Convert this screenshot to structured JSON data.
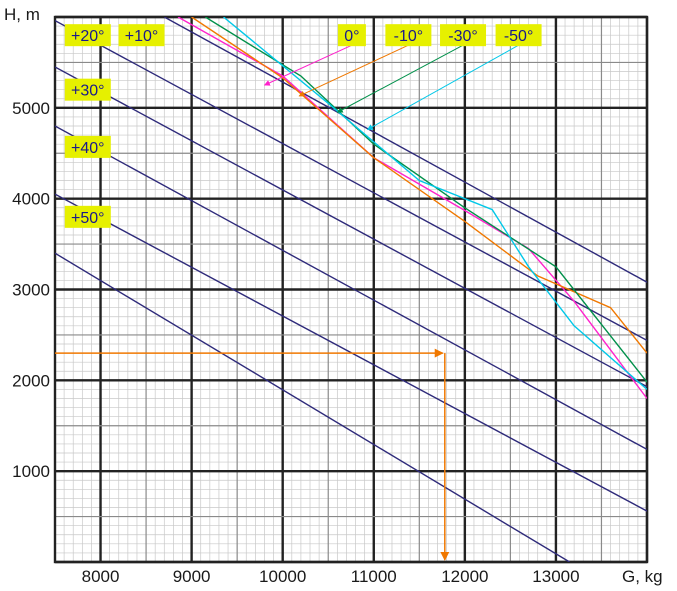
{
  "chart_data": {
    "type": "line",
    "xlabel": "G, kg",
    "ylabel": "H, m",
    "xlim": [
      7500,
      14000
    ],
    "ylim": [
      0,
      6000
    ],
    "x_ticks": [
      8000,
      9000,
      10000,
      11000,
      12000,
      13000
    ],
    "x_tick_labels": [
      "8000",
      "9000",
      "10000",
      "11000",
      "12000",
      "13000"
    ],
    "y_ticks": [
      1000,
      2000,
      3000,
      4000,
      5000
    ],
    "y_tick_labels": [
      "1000",
      "2000",
      "3000",
      "4000",
      "5000"
    ],
    "grid": true,
    "colors": {
      "isotherm_positive": "#2e2a7a",
      "curve_0": "#ff22cc",
      "curve_minus10": "#f07800",
      "curve_minus30": "#00904a",
      "curve_minus50": "#00c8e8",
      "example": "#f07800",
      "label_bg": "#e6f000",
      "label_text": "#1a1a8a"
    },
    "series": [
      {
        "name": "+20°",
        "color": "#2e2a7a",
        "points": [
          [
            7500,
            5960
          ],
          [
            14000,
            2440
          ]
        ]
      },
      {
        "name": "+10°",
        "color": "#2e2a7a",
        "points": [
          [
            8700,
            6000
          ],
          [
            14000,
            3080
          ]
        ]
      },
      {
        "name": "+30°",
        "color": "#2e2a7a",
        "points": [
          [
            7500,
            5450
          ],
          [
            14000,
            1930
          ]
        ]
      },
      {
        "name": "+40°",
        "color": "#2e2a7a",
        "points": [
          [
            7500,
            4800
          ],
          [
            14000,
            1240
          ]
        ]
      },
      {
        "name": "+50°",
        "color": "#2e2a7a",
        "points": [
          [
            7500,
            4050
          ],
          [
            14000,
            560
          ]
        ]
      },
      {
        "name": "",
        "color": "#2e2a7a",
        "points": [
          [
            7500,
            3400
          ],
          [
            13150,
            0
          ]
        ]
      },
      {
        "name": "0°",
        "color": "#ff22cc",
        "points": [
          [
            8850,
            6000
          ],
          [
            10000,
            5350
          ],
          [
            11000,
            4450
          ],
          [
            12000,
            3870
          ],
          [
            12700,
            3450
          ],
          [
            13200,
            2870
          ],
          [
            14000,
            1800
          ]
        ]
      },
      {
        "name": "-10°",
        "color": "#f07800",
        "points": [
          [
            9000,
            6000
          ],
          [
            10000,
            5330
          ],
          [
            11000,
            4450
          ],
          [
            12000,
            3750
          ],
          [
            12800,
            3150
          ],
          [
            13600,
            2800
          ],
          [
            14000,
            2300
          ]
        ]
      },
      {
        "name": "-30°",
        "color": "#00904a",
        "points": [
          [
            9150,
            6000
          ],
          [
            10200,
            5350
          ],
          [
            11000,
            4600
          ],
          [
            12000,
            3900
          ],
          [
            13000,
            3250
          ],
          [
            14000,
            1980
          ]
        ]
      },
      {
        "name": "-50°",
        "color": "#00c8e8",
        "points": [
          [
            9350,
            6000
          ],
          [
            10500,
            5050
          ],
          [
            11500,
            4200
          ],
          [
            12300,
            3880
          ],
          [
            12700,
            3250
          ],
          [
            13200,
            2600
          ],
          [
            14000,
            1900
          ]
        ]
      }
    ],
    "example_line": {
      "color": "#f07800",
      "points": [
        [
          7500,
          2300
        ],
        [
          11780,
          2300
        ],
        [
          11780,
          0
        ]
      ]
    },
    "labels": [
      {
        "text": "+20°",
        "at": [
          7860,
          5800
        ],
        "color": "#e6f000"
      },
      {
        "text": "+10°",
        "at": [
          8450,
          5800
        ],
        "color": "#e6f000"
      },
      {
        "text": "+30°",
        "at": [
          7860,
          5200
        ],
        "color": "#e6f000"
      },
      {
        "text": "+40°",
        "at": [
          7860,
          4570
        ],
        "color": "#e6f000"
      },
      {
        "text": "+50°",
        "at": [
          7860,
          3800
        ],
        "color": "#e6f000"
      },
      {
        "text": "0°",
        "at": [
          10760,
          5800
        ],
        "color": "#e6f000",
        "point_to": [
          9800,
          5250
        ],
        "line_color": "#ff22cc"
      },
      {
        "text": "-10°",
        "at": [
          11380,
          5800
        ],
        "color": "#e6f000",
        "point_to": [
          10180,
          5130
        ],
        "line_color": "#f07800"
      },
      {
        "text": "-30°",
        "at": [
          11980,
          5800
        ],
        "color": "#e6f000",
        "point_to": [
          10600,
          4950
        ],
        "line_color": "#00904a"
      },
      {
        "text": "-50°",
        "at": [
          12590,
          5800
        ],
        "color": "#e6f000",
        "point_to": [
          10930,
          4760
        ],
        "line_color": "#00c8e8"
      }
    ]
  }
}
